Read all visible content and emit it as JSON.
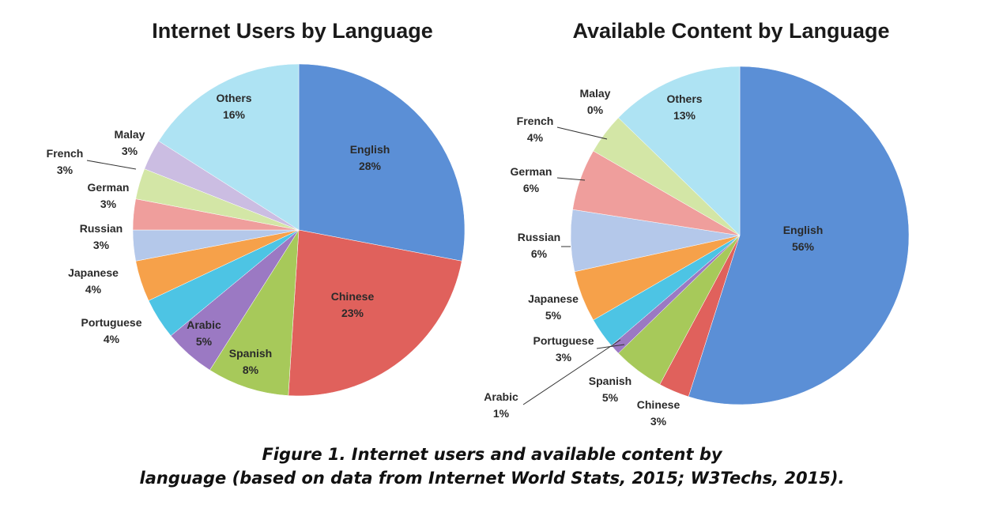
{
  "chart_data": [
    {
      "type": "pie",
      "title": "Internet Users by Language",
      "slices": [
        {
          "label": "English",
          "value": 28,
          "display": "28%",
          "color": "#5b8fd6"
        },
        {
          "label": "Chinese",
          "value": 23,
          "display": "23%",
          "color": "#e0615c"
        },
        {
          "label": "Spanish",
          "value": 8,
          "display": "8%",
          "color": "#a7c95a"
        },
        {
          "label": "Arabic",
          "value": 5,
          "display": "5%",
          "color": "#9b79c3"
        },
        {
          "label": "Portuguese",
          "value": 4,
          "display": "4%",
          "color": "#4dc4e4"
        },
        {
          "label": "Japanese",
          "value": 4,
          "display": "4%",
          "color": "#f6a14a"
        },
        {
          "label": "Russian",
          "value": 3,
          "display": "3%",
          "color": "#b4c8ea"
        },
        {
          "label": "German",
          "value": 3,
          "display": "3%",
          "color": "#ef9e9c"
        },
        {
          "label": "French",
          "value": 3,
          "display": "3%",
          "color": "#d3e6a6"
        },
        {
          "label": "Malay",
          "value": 3,
          "display": "3%",
          "color": "#cbbde2"
        },
        {
          "label": "Others",
          "value": 16,
          "display": "16%",
          "color": "#aee3f3"
        }
      ]
    },
    {
      "type": "pie",
      "title": "Available Content by Language",
      "slices": [
        {
          "label": "English",
          "value": 56,
          "display": "56%",
          "color": "#5b8fd6"
        },
        {
          "label": "Chinese",
          "value": 3,
          "display": "3%",
          "color": "#e0615c"
        },
        {
          "label": "Spanish",
          "value": 5,
          "display": "5%",
          "color": "#a7c95a"
        },
        {
          "label": "Arabic",
          "value": 1,
          "display": "1%",
          "color": "#9b79c3"
        },
        {
          "label": "Portuguese",
          "value": 3,
          "display": "3%",
          "color": "#4dc4e4"
        },
        {
          "label": "Japanese",
          "value": 5,
          "display": "5%",
          "color": "#f6a14a"
        },
        {
          "label": "Russian",
          "value": 6,
          "display": "6%",
          "color": "#b4c8ea"
        },
        {
          "label": "German",
          "value": 6,
          "display": "6%",
          "color": "#ef9e9c"
        },
        {
          "label": "French",
          "value": 4,
          "display": "4%",
          "color": "#d3e6a6"
        },
        {
          "label": "Malay",
          "value": 0,
          "display": "0%",
          "color": "#cbbde2"
        },
        {
          "label": "Others",
          "value": 13,
          "display": "13%",
          "color": "#aee3f3"
        }
      ]
    }
  ],
  "caption": {
    "line1": "Figure 1. Internet users and available content by",
    "line2": "language (based on data from Internet World Stats, 2015; W3Techs, 2015)."
  }
}
